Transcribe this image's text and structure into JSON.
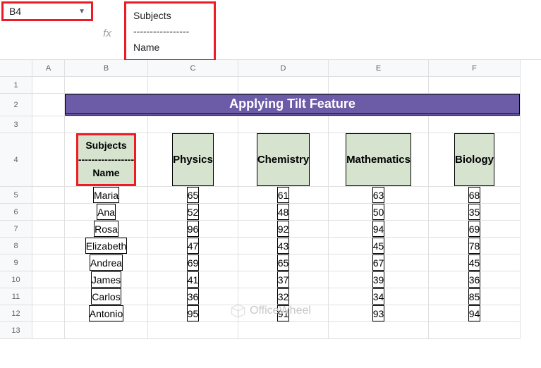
{
  "name_box": {
    "value": "B4"
  },
  "formula_bar": {
    "line1": "Subjects",
    "line2": "-----------------",
    "line3": "Name"
  },
  "columns": [
    "A",
    "B",
    "C",
    "D",
    "E",
    "F"
  ],
  "rows": [
    "1",
    "2",
    "3",
    "4",
    "5",
    "6",
    "7",
    "8",
    "9",
    "10",
    "11",
    "12",
    "13"
  ],
  "title": "Applying Tilt Feature",
  "title_bg": "#6c5ba7",
  "header_bg": "#d5e3cf",
  "highlight_border": "#ed1c24",
  "corner_header": {
    "top": "Subjects",
    "sep": "-----------------",
    "bottom": "Name"
  },
  "subject_headers": [
    "Physics",
    "Chemistry",
    "Mathematics",
    "Biology"
  ],
  "data_rows": [
    {
      "name": "Maria",
      "v": [
        "65",
        "61",
        "63",
        "68"
      ]
    },
    {
      "name": "Ana",
      "v": [
        "52",
        "48",
        "50",
        "35"
      ]
    },
    {
      "name": "Rosa",
      "v": [
        "96",
        "92",
        "94",
        "69"
      ]
    },
    {
      "name": "Elizabeth",
      "v": [
        "47",
        "43",
        "45",
        "78"
      ]
    },
    {
      "name": "Andrea",
      "v": [
        "69",
        "65",
        "67",
        "45"
      ]
    },
    {
      "name": "James",
      "v": [
        "41",
        "37",
        "39",
        "36"
      ]
    },
    {
      "name": "Carlos",
      "v": [
        "36",
        "32",
        "34",
        "85"
      ]
    },
    {
      "name": "Antonio",
      "v": [
        "95",
        "91",
        "93",
        "94"
      ]
    }
  ],
  "watermark": "OfficeWheel"
}
